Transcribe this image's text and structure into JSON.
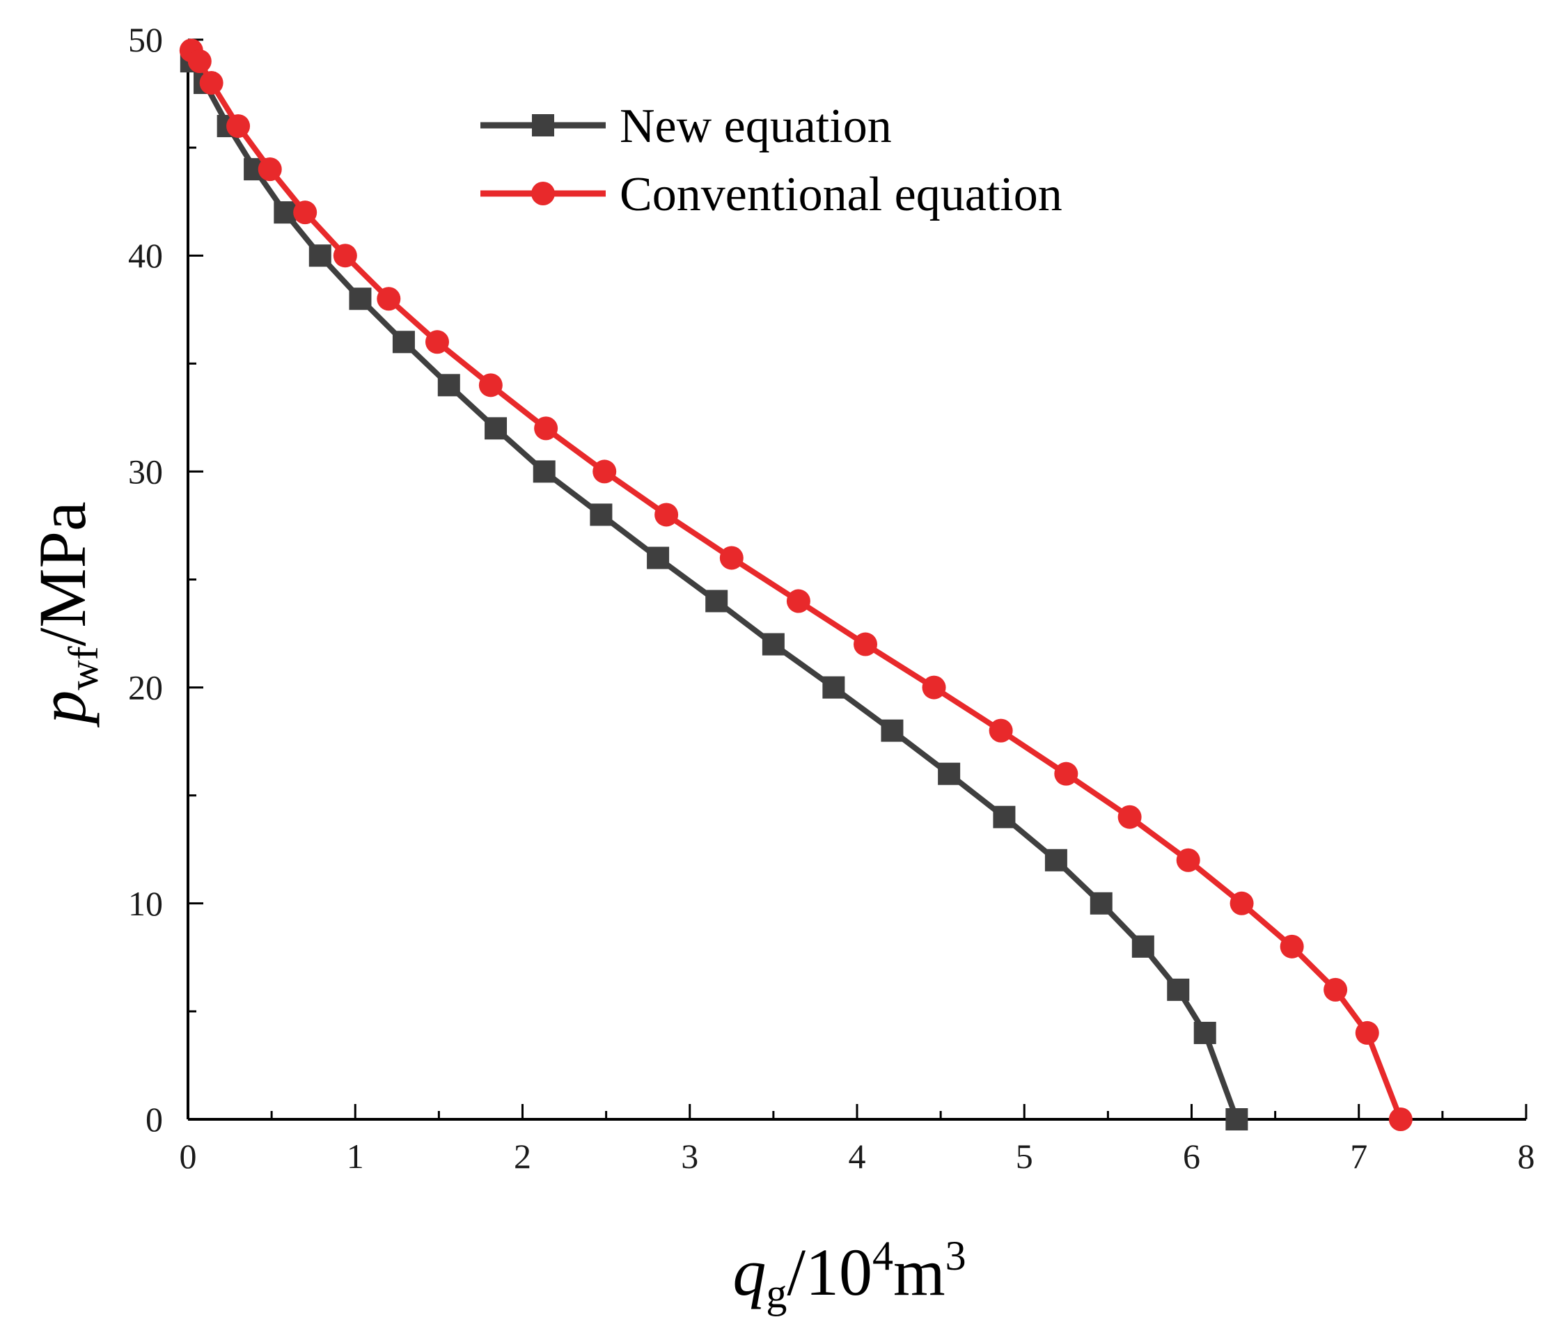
{
  "chart_data": {
    "type": "line",
    "title": "",
    "xlabel": {
      "var": "q",
      "sub": "g",
      "unit_prefix": "/10",
      "exp1": "4",
      "unit_mid": "m",
      "exp2": "3"
    },
    "ylabel": {
      "var": "p",
      "sub": "wf",
      "unit": "/MPa"
    },
    "xlim": [
      0,
      8
    ],
    "ylim": [
      0,
      50
    ],
    "xticks": [
      0,
      1,
      2,
      3,
      4,
      5,
      6,
      7,
      8
    ],
    "yticks": [
      0,
      10,
      20,
      30,
      40,
      50
    ],
    "x_minor_step": 0.5,
    "y_minor_step": 5,
    "legend_position": "top-center",
    "series": [
      {
        "name": "New equation",
        "color": "#3f3f3f",
        "marker": "square",
        "x": [
          0.02,
          0.1,
          0.24,
          0.4,
          0.58,
          0.79,
          1.03,
          1.29,
          1.56,
          1.84,
          2.13,
          2.47,
          2.81,
          3.16,
          3.5,
          3.86,
          4.21,
          4.55,
          4.88,
          5.19,
          5.46,
          5.71,
          5.92,
          6.08,
          6.27
        ],
        "y": [
          49,
          48,
          46,
          44,
          42,
          40,
          38,
          36,
          34,
          32,
          30,
          28,
          26,
          24,
          22,
          20,
          18,
          16,
          14,
          12,
          10,
          8,
          6,
          4,
          0
        ]
      },
      {
        "name": "Conventional equation",
        "color": "#e8292b",
        "marker": "circle",
        "x": [
          0.02,
          0.07,
          0.14,
          0.3,
          0.49,
          0.7,
          0.94,
          1.2,
          1.49,
          1.81,
          2.14,
          2.49,
          2.86,
          3.25,
          3.65,
          4.05,
          4.46,
          4.86,
          5.25,
          5.63,
          5.98,
          6.3,
          6.6,
          6.86,
          7.05,
          7.25
        ],
        "y": [
          49.5,
          49,
          48,
          46,
          44,
          42,
          40,
          38,
          36,
          34,
          32,
          30,
          28,
          26,
          24,
          22,
          20,
          18,
          16,
          14,
          12,
          10,
          8,
          6,
          4,
          0
        ]
      }
    ]
  }
}
